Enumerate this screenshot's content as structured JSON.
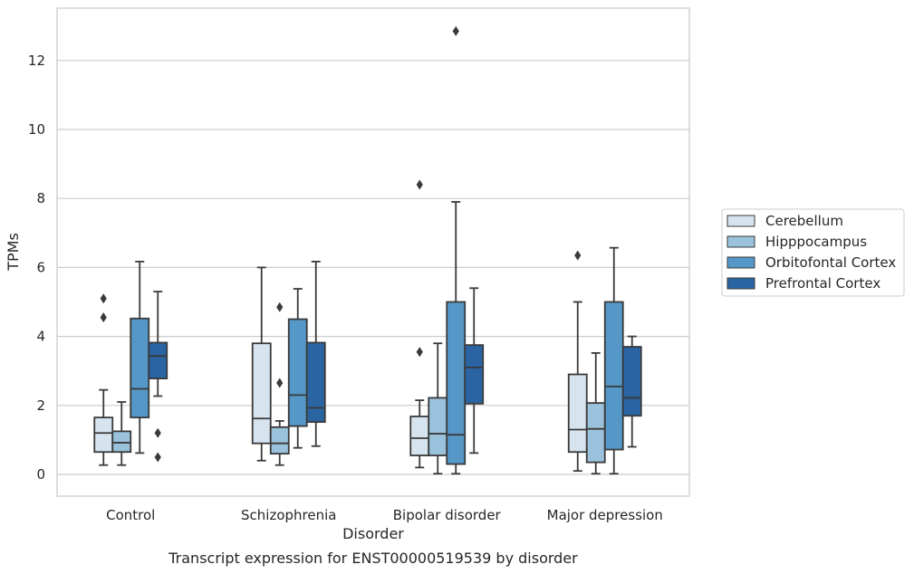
{
  "chart_data": {
    "type": "box",
    "xlabel": "Disorder",
    "ylabel": "TPMs",
    "caption": "Transcript expression for ENST00000519539 by disorder",
    "ylim": [
      -0.6,
      13.5
    ],
    "yticks": [
      0,
      2,
      4,
      6,
      8,
      10,
      12
    ],
    "grid": "horizontal",
    "legend_position": "right",
    "categories": [
      "Control",
      "Schizophrenia",
      "Bipolar disorder",
      "Major depression"
    ],
    "series": [
      {
        "name": "Cerebellum",
        "color": "#d6e4f0",
        "boxes": [
          {
            "whislo": 0.27,
            "q1": 0.65,
            "med": 1.2,
            "q3": 1.65,
            "whishi": 2.45,
            "fliers": [
              4.55,
              5.1
            ]
          },
          {
            "whislo": 0.4,
            "q1": 0.9,
            "med": 1.62,
            "q3": 3.8,
            "whishi": 6.0,
            "fliers": []
          },
          {
            "whislo": 0.2,
            "q1": 0.55,
            "med": 1.05,
            "q3": 1.68,
            "whishi": 2.15,
            "fliers": [
              3.55,
              8.4
            ]
          },
          {
            "whislo": 0.1,
            "q1": 0.65,
            "med": 1.3,
            "q3": 2.9,
            "whishi": 5.0,
            "fliers": [
              6.35
            ]
          }
        ]
      },
      {
        "name": "Hipppocampus",
        "color": "#9bc2dc",
        "boxes": [
          {
            "whislo": 0.27,
            "q1": 0.65,
            "med": 0.92,
            "q3": 1.25,
            "whishi": 2.1,
            "fliers": []
          },
          {
            "whislo": 0.27,
            "q1": 0.6,
            "med": 0.9,
            "q3": 1.37,
            "whishi": 1.55,
            "fliers": [
              2.65,
              4.85
            ]
          },
          {
            "whislo": 0.02,
            "q1": 0.55,
            "med": 1.18,
            "q3": 2.22,
            "whishi": 3.8,
            "fliers": []
          },
          {
            "whislo": 0.02,
            "q1": 0.35,
            "med": 1.32,
            "q3": 2.07,
            "whishi": 3.52,
            "fliers": []
          }
        ]
      },
      {
        "name": "Orbitofontal Cortex",
        "color": "#5597c6",
        "boxes": [
          {
            "whislo": 0.62,
            "q1": 1.65,
            "med": 2.48,
            "q3": 4.52,
            "whishi": 6.17,
            "fliers": []
          },
          {
            "whislo": 0.77,
            "q1": 1.4,
            "med": 2.3,
            "q3": 4.5,
            "whishi": 5.38,
            "fliers": []
          },
          {
            "whislo": 0.02,
            "q1": 0.3,
            "med": 1.15,
            "q3": 5.0,
            "whishi": 7.9,
            "fliers": [
              12.85
            ]
          },
          {
            "whislo": 0.02,
            "q1": 0.72,
            "med": 2.55,
            "q3": 5.0,
            "whishi": 6.57,
            "fliers": []
          }
        ]
      },
      {
        "name": "Prefrontal Cortex",
        "color": "#2a64a2",
        "boxes": [
          {
            "whislo": 2.27,
            "q1": 2.78,
            "med": 3.43,
            "q3": 3.82,
            "whishi": 5.3,
            "fliers": [
              0.5,
              1.2
            ]
          },
          {
            "whislo": 0.82,
            "q1": 1.52,
            "med": 1.93,
            "q3": 3.82,
            "whishi": 6.17,
            "fliers": []
          },
          {
            "whislo": 0.62,
            "q1": 2.05,
            "med": 3.1,
            "q3": 3.75,
            "whishi": 5.4,
            "fliers": []
          },
          {
            "whislo": 0.8,
            "q1": 1.7,
            "med": 2.22,
            "q3": 3.7,
            "whishi": 4.0,
            "fliers": []
          }
        ]
      }
    ]
  }
}
